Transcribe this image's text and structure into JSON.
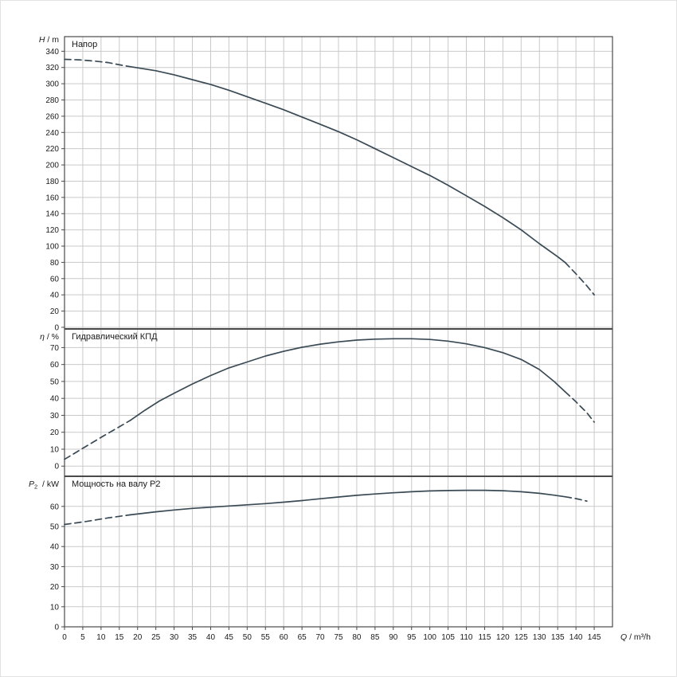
{
  "x_axis": {
    "label": {
      "symbol": "Q",
      "sub": "",
      "unit": "m³/h"
    },
    "lim": [
      0,
      150
    ],
    "ticks": {
      "from": 0,
      "to": 145,
      "step": 5
    }
  },
  "chart_data": [
    {
      "type": "line",
      "title": "Напор",
      "ylabel": {
        "symbol": "H",
        "sub": "",
        "unit": "m"
      },
      "ylim": [
        -2,
        358
      ],
      "yticks": {
        "from": 0,
        "to": 340,
        "step": 20
      },
      "series": [
        {
          "name": "head-low-flow-extrapolated",
          "style": "dashed",
          "points": [
            [
              0,
              330
            ],
            [
              4,
              329.5
            ],
            [
              8,
              328
            ],
            [
              12,
              326
            ],
            [
              16,
              322.5
            ],
            [
              18,
              321
            ]
          ]
        },
        {
          "name": "head-operating-range",
          "style": "solid",
          "points": [
            [
              18,
              321
            ],
            [
              25,
              316
            ],
            [
              30,
              311
            ],
            [
              35,
              305
            ],
            [
              40,
              299
            ],
            [
              45,
              292
            ],
            [
              50,
              284
            ],
            [
              55,
              276
            ],
            [
              60,
              268
            ],
            [
              65,
              259
            ],
            [
              70,
              250
            ],
            [
              75,
              241
            ],
            [
              80,
              231
            ],
            [
              85,
              220
            ],
            [
              90,
              209
            ],
            [
              95,
              198
            ],
            [
              100,
              187
            ],
            [
              105,
              175
            ],
            [
              110,
              162
            ],
            [
              115,
              149
            ],
            [
              120,
              135
            ],
            [
              125,
              120
            ],
            [
              130,
              103
            ],
            [
              135,
              87
            ],
            [
              137,
              80
            ]
          ]
        },
        {
          "name": "head-high-flow-extrapolated",
          "style": "dashed",
          "points": [
            [
              137,
              80
            ],
            [
              140,
              66
            ],
            [
              143,
              51
            ],
            [
              145,
              40
            ]
          ]
        }
      ]
    },
    {
      "type": "line",
      "title": "Гидравлический КПД",
      "ylabel": {
        "symbol": "η",
        "sub": "",
        "unit": "%"
      },
      "ylim": [
        -6,
        81
      ],
      "yticks": {
        "from": 0,
        "to": 70,
        "step": 10
      },
      "series": [
        {
          "name": "efficiency-low-flow-extrapolated",
          "style": "dashed",
          "points": [
            [
              0,
              4
            ],
            [
              5,
              10.5
            ],
            [
              10,
              17
            ],
            [
              14,
              22
            ],
            [
              18,
              27
            ]
          ]
        },
        {
          "name": "efficiency-operating-range",
          "style": "solid",
          "points": [
            [
              18,
              27
            ],
            [
              22,
              33
            ],
            [
              26,
              38.5
            ],
            [
              30,
              43
            ],
            [
              35,
              48.5
            ],
            [
              40,
              53.5
            ],
            [
              45,
              58
            ],
            [
              50,
              61.5
            ],
            [
              55,
              65
            ],
            [
              60,
              67.8
            ],
            [
              65,
              70.2
            ],
            [
              70,
              72
            ],
            [
              75,
              73.4
            ],
            [
              80,
              74.4
            ],
            [
              85,
              75
            ],
            [
              90,
              75.2
            ],
            [
              95,
              75.2
            ],
            [
              100,
              74.8
            ],
            [
              105,
              73.8
            ],
            [
              110,
              72.2
            ],
            [
              115,
              70
            ],
            [
              120,
              67
            ],
            [
              125,
              63
            ],
            [
              130,
              57
            ],
            [
              134,
              50
            ],
            [
              137,
              44
            ]
          ]
        },
        {
          "name": "efficiency-high-flow-extrapolated",
          "style": "dashed",
          "points": [
            [
              137,
              44
            ],
            [
              140,
              38
            ],
            [
              143,
              31.5
            ],
            [
              145,
              26
            ]
          ]
        }
      ]
    },
    {
      "type": "line",
      "title": "Мощность на валу P2",
      "ylabel": {
        "symbol": "P",
        "sub": "2",
        "unit": "kW"
      },
      "ylim": [
        0,
        75
      ],
      "yticks": {
        "from": 0,
        "to": 60,
        "step": 10
      },
      "series": [
        {
          "name": "power-low-flow-extrapolated",
          "style": "dashed",
          "points": [
            [
              0,
              51
            ],
            [
              6,
              52.5
            ],
            [
              12,
              54.3
            ],
            [
              18,
              55.8
            ]
          ]
        },
        {
          "name": "power-operating-range",
          "style": "solid",
          "points": [
            [
              18,
              55.8
            ],
            [
              25,
              57.3
            ],
            [
              30,
              58.2
            ],
            [
              35,
              59
            ],
            [
              40,
              59.6
            ],
            [
              45,
              60.2
            ],
            [
              50,
              60.8
            ],
            [
              55,
              61.4
            ],
            [
              60,
              62.1
            ],
            [
              65,
              62.9
            ],
            [
              70,
              63.8
            ],
            [
              75,
              64.7
            ],
            [
              80,
              65.5
            ],
            [
              85,
              66.2
            ],
            [
              90,
              66.8
            ],
            [
              95,
              67.3
            ],
            [
              100,
              67.7
            ],
            [
              105,
              67.9
            ],
            [
              110,
              68
            ],
            [
              115,
              68
            ],
            [
              120,
              67.8
            ],
            [
              125,
              67.3
            ],
            [
              130,
              66.5
            ],
            [
              134,
              65.6
            ],
            [
              137,
              64.8
            ]
          ]
        },
        {
          "name": "power-high-flow-extrapolated",
          "style": "dashed",
          "points": [
            [
              137,
              64.8
            ],
            [
              140,
              63.9
            ],
            [
              143,
              62.6
            ]
          ]
        }
      ]
    }
  ],
  "colors": {
    "curve": "#3a4a55",
    "grid": "#c9c9c9",
    "axis": "#4a4a4a",
    "text": "#1a1a1a",
    "background": "#ffffff"
  }
}
